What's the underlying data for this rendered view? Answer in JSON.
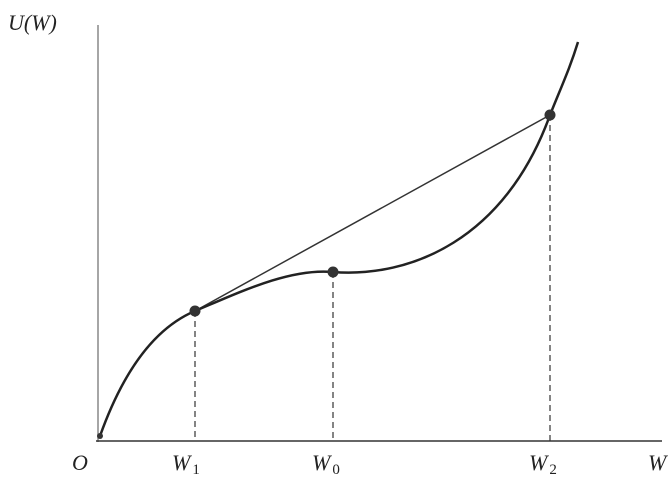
{
  "axes": {
    "y_label": "U(W)",
    "origin": "O",
    "x_label": "W"
  },
  "points": [
    {
      "label": "W",
      "subscript": "1"
    },
    {
      "label": "W",
      "subscript": "0"
    },
    {
      "label": "W",
      "subscript": "2"
    }
  ]
}
